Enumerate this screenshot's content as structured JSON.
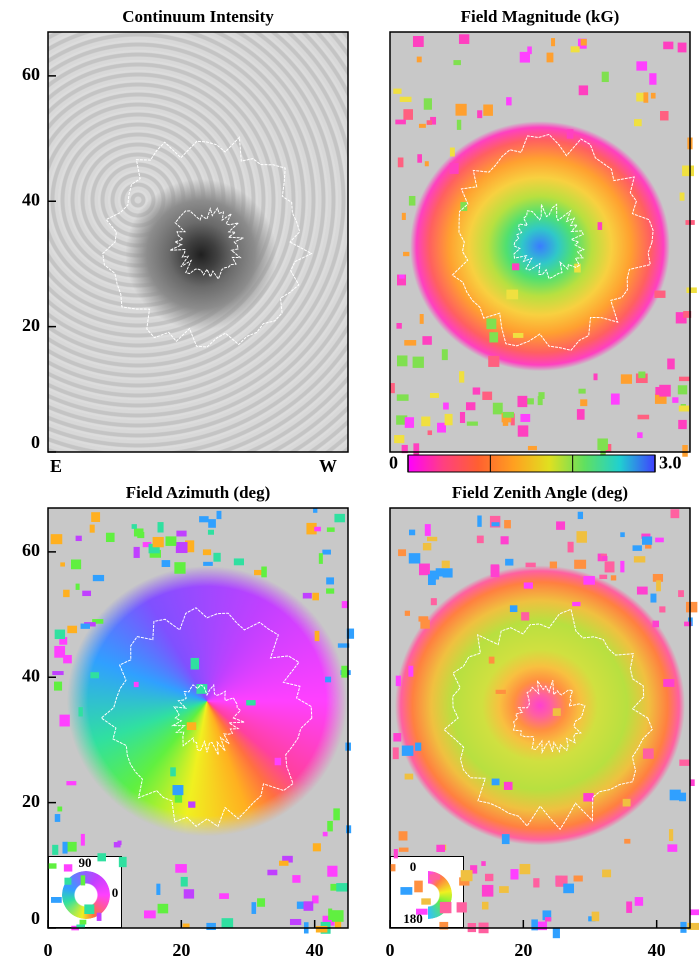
{
  "chart_data": [
    {
      "type": "image",
      "title": "Continuum Intensity",
      "xlim": [
        0,
        45
      ],
      "ylim": [
        0,
        67
      ],
      "yticks": [
        0,
        20,
        40,
        60
      ],
      "annotations": [
        "E",
        "W"
      ]
    },
    {
      "type": "image",
      "title": "Field Magnitude (kG)",
      "xlim": [
        0,
        45
      ],
      "ylim": [
        0,
        67
      ],
      "colorbar": {
        "lim": [
          0,
          3
        ],
        "ticks": [
          0,
          {
            "value": 3,
            "label": "3.0"
          }
        ]
      }
    },
    {
      "type": "image",
      "title": "Field Azimuth (deg)",
      "xlim": [
        0,
        45
      ],
      "ylim": [
        0,
        67
      ],
      "xticks": [
        0,
        20,
        40
      ],
      "yticks": [
        0,
        20,
        40,
        60
      ],
      "inset": {
        "kind": "wheel",
        "ticks": [
          90,
          0
        ]
      }
    },
    {
      "type": "image",
      "title": "Field Zenith Angle (deg)",
      "xlim": [
        0,
        45
      ],
      "ylim": [
        0,
        67
      ],
      "xticks": [
        0,
        20,
        40
      ],
      "inset": {
        "kind": "half-wheel",
        "ticks": [
          0,
          180
        ]
      }
    }
  ]
}
